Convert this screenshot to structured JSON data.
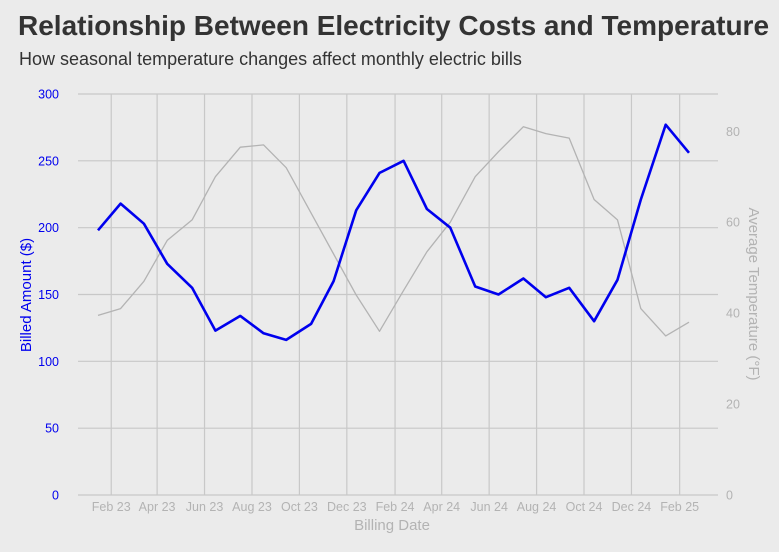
{
  "chart_data": {
    "type": "line",
    "title": "Relationship Between Electricity Costs and Temperature",
    "subtitle": "How seasonal temperature changes affect monthly electric bills",
    "xlabel": "Billing Date",
    "ylabel_left": "Billed Amount ($)",
    "ylabel_right": "Average Temperature (°F)",
    "x": [
      "2023-01-15",
      "2023-02-13",
      "2023-03-15",
      "2023-04-14",
      "2023-05-16",
      "2023-06-15",
      "2023-07-17",
      "2023-08-16",
      "2023-09-14",
      "2023-10-16",
      "2023-11-14",
      "2023-12-13",
      "2024-01-12",
      "2024-02-12",
      "2024-03-13",
      "2024-04-12",
      "2024-05-14",
      "2024-06-13",
      "2024-07-15",
      "2024-08-13",
      "2024-09-12",
      "2024-10-14",
      "2024-11-13",
      "2024-12-13",
      "2025-01-14",
      "2025-02-13"
    ],
    "x_ticks": [
      "Feb 23",
      "Apr 23",
      "Jun 23",
      "Aug 23",
      "Oct 23",
      "Dec 23",
      "Feb 24",
      "Apr 24",
      "Jun 24",
      "Aug 24",
      "Oct 24",
      "Dec 24",
      "Feb 25"
    ],
    "x_tick_dates": [
      "2023-02-01",
      "2023-04-01",
      "2023-06-01",
      "2023-08-01",
      "2023-10-01",
      "2023-12-01",
      "2024-02-01",
      "2024-04-01",
      "2024-06-01",
      "2024-08-01",
      "2024-10-01",
      "2024-12-01",
      "2025-02-01"
    ],
    "ylim_left": [
      0,
      300
    ],
    "yticks_left": [
      0,
      50,
      100,
      150,
      200,
      250,
      300
    ],
    "ylim_right": [
      0,
      88.2
    ],
    "yticks_right": [
      0,
      20,
      40,
      60,
      80
    ],
    "grid": true,
    "series": [
      {
        "axis": "left",
        "color": "#0000ee",
        "values": [
          198,
          218,
          203,
          173,
          155,
          123,
          134,
          121,
          116,
          128,
          160,
          213,
          241,
          250,
          214,
          200,
          156,
          150,
          162,
          148,
          155,
          130,
          161,
          221,
          277,
          256
        ]
      },
      {
        "axis": "right",
        "color": "#b3b3b3",
        "values": [
          39.5,
          41,
          47,
          56,
          60.5,
          70,
          76.5,
          77,
          72,
          62,
          53,
          44,
          36,
          45,
          53.5,
          60,
          70,
          75.5,
          81,
          79.5,
          78.5,
          65,
          60.5,
          41,
          35,
          38
        ]
      }
    ]
  }
}
